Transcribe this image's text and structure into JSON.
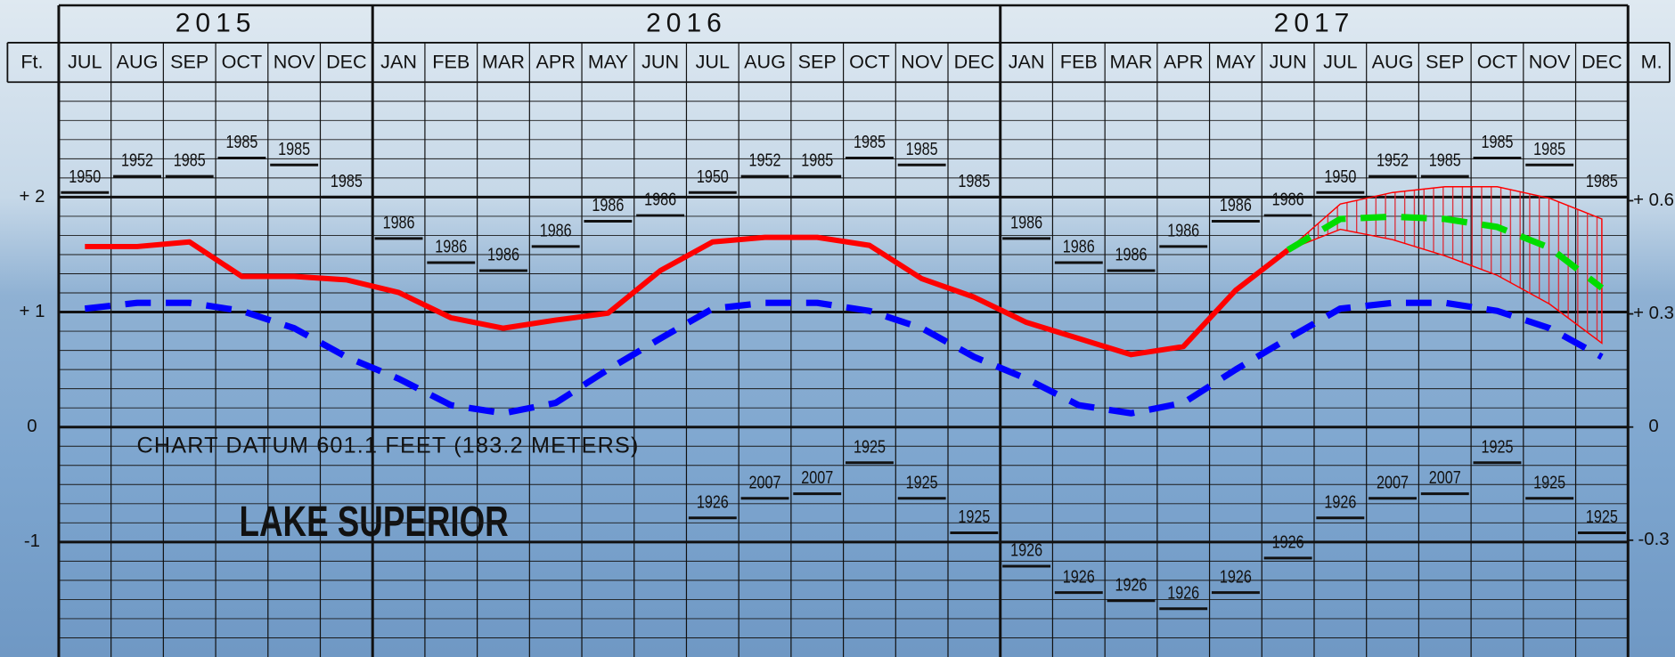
{
  "chart_data": {
    "type": "line",
    "left_unit": "Ft.",
    "right_unit": "M.",
    "groups": [
      {
        "year": "2015",
        "months": [
          "JUL",
          "AUG",
          "SEP",
          "OCT",
          "NOV",
          "DEC"
        ]
      },
      {
        "year": "2016",
        "months": [
          "JAN",
          "FEB",
          "MAR",
          "APR",
          "MAY",
          "JUN",
          "JUL",
          "AUG",
          "SEP",
          "OCT",
          "NOV",
          "DEC"
        ]
      },
      {
        "year": "2017",
        "months": [
          "JAN",
          "FEB",
          "MAR",
          "APR",
          "MAY",
          "JUN",
          "JUL",
          "AUG",
          "SEP",
          "OCT",
          "NOV",
          "DEC"
        ]
      }
    ],
    "ylim": [
      -2,
      3
    ],
    "yticks": [
      {
        "value": 2,
        "label": "+ 2"
      },
      {
        "value": 1,
        "label": "+ 1"
      },
      0,
      -1
    ],
    "y2lim": [
      -0.6096,
      0.9144
    ],
    "y2ticks": [
      {
        "value": 0.6,
        "label": "+ 0.6"
      },
      {
        "value": 0.3,
        "label": "+ 0.3"
      },
      0,
      -0.3
    ],
    "minor_grid_per_unit": 6,
    "series": [
      {
        "color": "#ff0000",
        "style": "solid",
        "values": [
          1.57,
          1.57,
          1.61,
          1.31,
          1.31,
          1.28,
          1.17,
          0.95,
          0.86,
          0.93,
          0.99,
          1.36,
          1.61,
          1.65,
          1.65,
          1.58,
          1.29,
          1.13,
          0.91,
          0.77,
          0.63,
          0.7,
          1.19,
          1.54,
          null,
          null,
          null,
          null,
          null,
          null
        ]
      },
      {
        "color": "#0000ff",
        "style": "dashed",
        "values": [
          1.03,
          1.08,
          1.08,
          1.01,
          0.86,
          0.61,
          0.42,
          0.19,
          0.12,
          0.21,
          0.5,
          0.77,
          1.03,
          1.08,
          1.08,
          1.01,
          0.86,
          0.61,
          0.42,
          0.19,
          0.12,
          0.21,
          0.5,
          0.77,
          1.03,
          1.08,
          1.08,
          1.01,
          0.86,
          0.61
        ]
      },
      {
        "color": "#00dd00",
        "style": "dashed",
        "values": [
          null,
          null,
          null,
          null,
          null,
          null,
          null,
          null,
          null,
          null,
          null,
          null,
          null,
          null,
          null,
          null,
          null,
          null,
          null,
          null,
          null,
          null,
          null,
          1.54,
          1.81,
          1.83,
          1.81,
          1.74,
          1.56,
          1.21
        ]
      }
    ],
    "forecast_range": {
      "color": "#ff0000",
      "upper": [
        null,
        null,
        null,
        null,
        null,
        null,
        null,
        null,
        null,
        null,
        null,
        null,
        null,
        null,
        null,
        null,
        null,
        null,
        null,
        null,
        null,
        null,
        null,
        1.54,
        1.94,
        2.04,
        2.09,
        2.09,
        1.99,
        1.81
      ],
      "lower": [
        null,
        null,
        null,
        null,
        null,
        null,
        null,
        null,
        null,
        null,
        null,
        null,
        null,
        null,
        null,
        null,
        null,
        null,
        null,
        null,
        null,
        null,
        null,
        1.54,
        1.72,
        1.63,
        1.49,
        1.32,
        1.07,
        0.73
      ]
    },
    "record_highs": {
      "values": [
        2.04,
        2.18,
        2.18,
        2.34,
        2.28,
        2.0,
        1.64,
        1.43,
        1.36,
        1.57,
        1.79,
        1.84,
        2.04,
        2.18,
        2.18,
        2.34,
        2.28,
        2.0,
        1.64,
        1.43,
        1.36,
        1.57,
        1.79,
        1.84,
        2.04,
        2.18,
        2.18,
        2.34,
        2.28,
        2.0
      ],
      "years": [
        "1950",
        "1952",
        "1985",
        "1985",
        "1985",
        "1985",
        "1986",
        "1986",
        "1986",
        "1986",
        "1986",
        "1986",
        "1950",
        "1952",
        "1985",
        "1985",
        "1985",
        "1985",
        "1986",
        "1986",
        "1986",
        "1986",
        "1986",
        "1986",
        "1950",
        "1952",
        "1985",
        "1985",
        "1985",
        "1985"
      ]
    },
    "record_lows": {
      "values": [
        null,
        null,
        null,
        null,
        null,
        null,
        null,
        null,
        null,
        null,
        null,
        null,
        -0.79,
        -0.62,
        -0.58,
        -0.31,
        -0.62,
        -0.92,
        -1.21,
        -1.44,
        -1.51,
        -1.58,
        -1.44,
        -1.14,
        -0.79,
        -0.62,
        -0.58,
        -0.31,
        -0.62,
        -0.92
      ],
      "years": [
        null,
        null,
        null,
        null,
        null,
        null,
        null,
        null,
        null,
        null,
        null,
        null,
        "1926",
        "2007",
        "2007",
        "1925",
        "1925",
        "1925",
        "1926",
        "1926",
        "1926",
        "1926",
        "1926",
        "1926",
        "1926",
        "2007",
        "2007",
        "1925",
        "1925",
        "1925"
      ]
    },
    "annotations": [
      "CHART DATUM  601.1 FEET (183.2 METERS)",
      "LAKE SUPERIOR"
    ]
  }
}
